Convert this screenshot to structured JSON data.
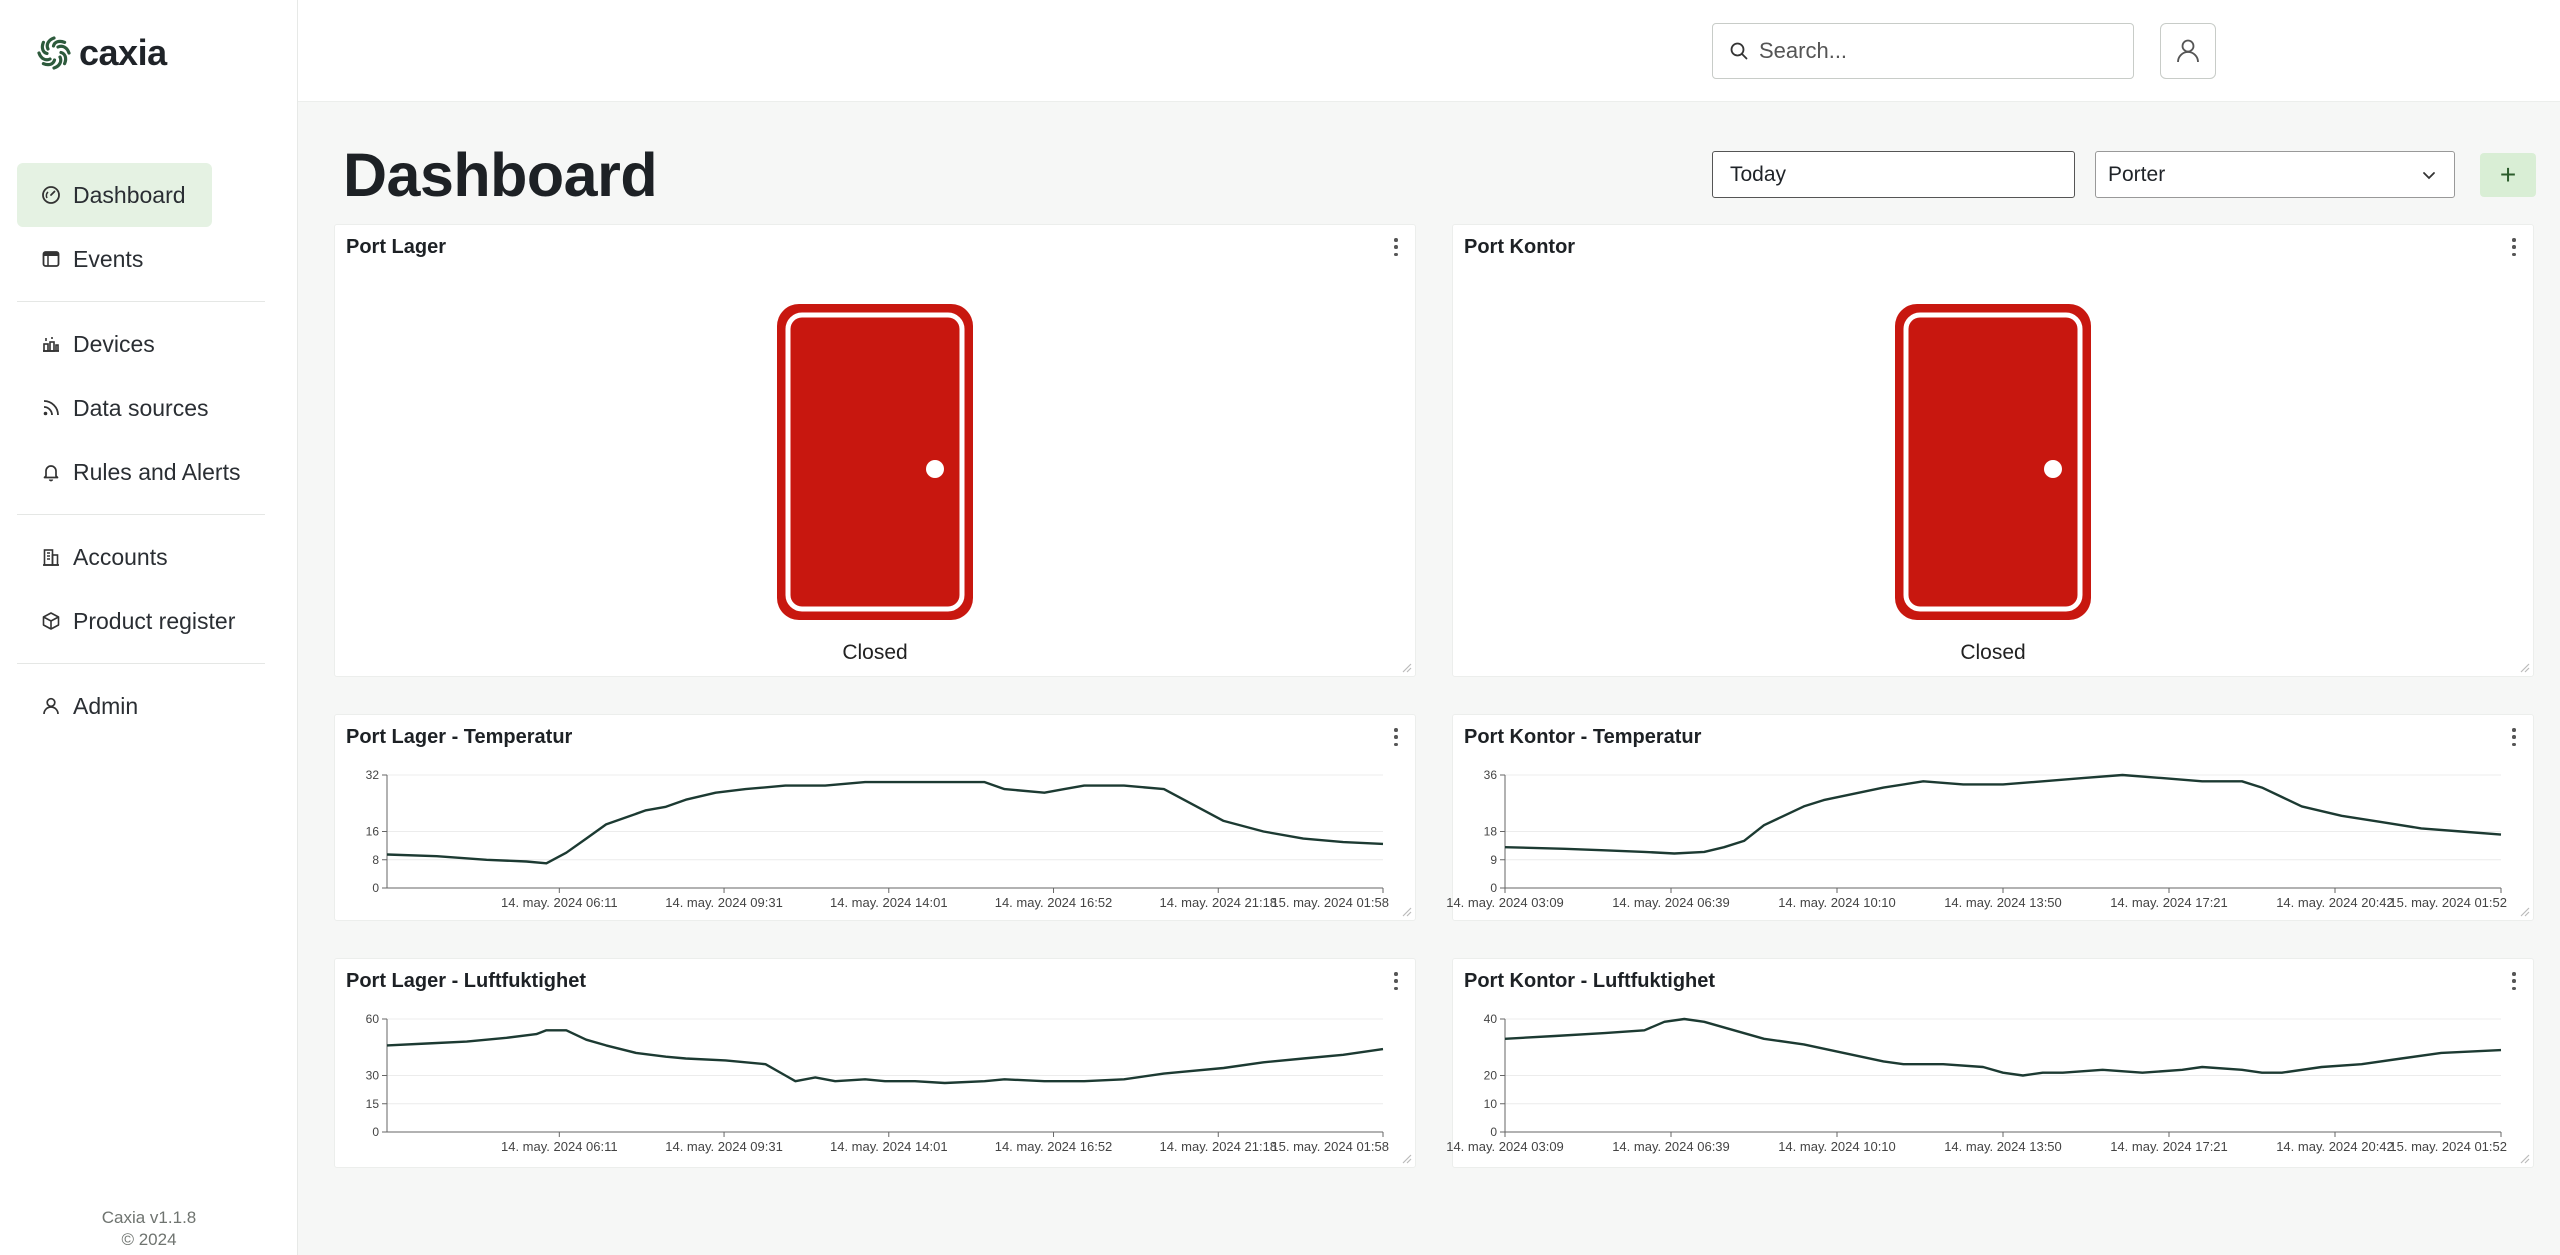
{
  "app": {
    "name": "caxia",
    "version": "Caxia v1.1.8",
    "copyright": "© 2024"
  },
  "sidebar": {
    "items": [
      {
        "label": "Dashboard",
        "icon": "gauge-icon",
        "active": true
      },
      {
        "label": "Events",
        "icon": "calendar-table-icon"
      },
      {
        "label": "Devices",
        "icon": "devices-icon"
      },
      {
        "label": "Data sources",
        "icon": "rss-icon"
      },
      {
        "label": "Rules and Alerts",
        "icon": "bell-icon"
      },
      {
        "label": "Accounts",
        "icon": "building-icon"
      },
      {
        "label": "Product register",
        "icon": "box-icon"
      },
      {
        "label": "Admin",
        "icon": "user-icon"
      }
    ]
  },
  "topbar": {
    "search_placeholder": "Search..."
  },
  "header": {
    "title": "Dashboard",
    "date_range": "Today",
    "group": "Porter",
    "add_label": "+"
  },
  "colors": {
    "accent_bg": "#e5f2e3",
    "door_red": "#c8170f",
    "line": "#1c3a32"
  },
  "widgets": {
    "door_lager": {
      "title": "Port Lager",
      "status": "Closed"
    },
    "door_kontor": {
      "title": "Port Kontor",
      "status": "Closed"
    },
    "temp_lager": {
      "title": "Port Lager - Temperatur"
    },
    "temp_kontor": {
      "title": "Port Kontor - Temperatur"
    },
    "hum_lager": {
      "title": "Port Lager - Luftfuktighet"
    },
    "hum_kontor": {
      "title": "Port Kontor - Luftfuktighet"
    }
  },
  "chart_data": [
    {
      "id": "temp_lager",
      "type": "line",
      "title": "Port Lager - Temperatur",
      "ylim": [
        0,
        32
      ],
      "yticks": [
        0,
        8,
        16,
        32
      ],
      "xticks": [
        "14. may. 2024 06:11",
        "14. may. 2024 09:31",
        "14. may. 2024 14:01",
        "14. may. 2024 16:52",
        "14. may. 2024 21:18",
        "15. may. 2024 01:58"
      ],
      "x": [
        0,
        0.05,
        0.1,
        0.14,
        0.16,
        0.18,
        0.2,
        0.22,
        0.24,
        0.26,
        0.28,
        0.3,
        0.33,
        0.36,
        0.4,
        0.44,
        0.48,
        0.52,
        0.56,
        0.6,
        0.62,
        0.66,
        0.68,
        0.7,
        0.74,
        0.78,
        0.8,
        0.84,
        0.88,
        0.92,
        0.96,
        1.0
      ],
      "y": [
        9.5,
        9,
        8,
        7.5,
        7,
        10,
        14,
        18,
        20,
        22,
        23,
        25,
        27,
        28,
        29,
        29,
        30,
        30,
        30,
        30,
        28,
        27,
        28,
        29,
        29,
        28,
        25,
        19,
        16,
        14,
        13,
        12.5
      ]
    },
    {
      "id": "temp_kontor",
      "type": "line",
      "title": "Port Kontor - Temperatur",
      "ylim": [
        0,
        36
      ],
      "yticks": [
        0,
        9,
        18,
        36
      ],
      "xticks": [
        "14. may. 2024 03:09",
        "14. may. 2024 06:39",
        "14. may. 2024 10:10",
        "14. may. 2024 13:50",
        "14. may. 2024 17:21",
        "14. may. 2024 20:42",
        "15. may. 2024 01:52"
      ],
      "x": [
        0,
        0.06,
        0.1,
        0.14,
        0.17,
        0.2,
        0.22,
        0.24,
        0.26,
        0.28,
        0.3,
        0.32,
        0.35,
        0.38,
        0.42,
        0.46,
        0.5,
        0.54,
        0.58,
        0.62,
        0.66,
        0.7,
        0.74,
        0.76,
        0.78,
        0.8,
        0.84,
        0.88,
        0.92,
        0.96,
        1.0
      ],
      "y": [
        13,
        12.5,
        12,
        11.5,
        11,
        11.5,
        13,
        15,
        20,
        23,
        26,
        28,
        30,
        32,
        34,
        33,
        33,
        34,
        35,
        36,
        35,
        34,
        34,
        32,
        29,
        26,
        23,
        21,
        19,
        18,
        17
      ]
    },
    {
      "id": "hum_lager",
      "type": "line",
      "title": "Port Lager - Luftfuktighet",
      "ylim": [
        0,
        60
      ],
      "yticks": [
        0,
        15,
        30,
        60
      ],
      "xticks": [
        "14. may. 2024 06:11",
        "14. may. 2024 09:31",
        "14. may. 2024 14:01",
        "14. may. 2024 16:52",
        "14. may. 2024 21:18",
        "15. may. 2024 01:58"
      ],
      "x": [
        0,
        0.04,
        0.08,
        0.12,
        0.15,
        0.16,
        0.18,
        0.2,
        0.22,
        0.25,
        0.28,
        0.3,
        0.34,
        0.38,
        0.4,
        0.41,
        0.43,
        0.45,
        0.48,
        0.5,
        0.53,
        0.56,
        0.6,
        0.62,
        0.66,
        0.7,
        0.74,
        0.78,
        0.8,
        0.84,
        0.88,
        0.92,
        0.96,
        1.0
      ],
      "y": [
        46,
        47,
        48,
        50,
        52,
        54,
        54,
        49,
        46,
        42,
        40,
        39,
        38,
        36,
        30,
        27,
        29,
        27,
        28,
        27,
        27,
        26,
        27,
        28,
        27,
        27,
        28,
        31,
        32,
        34,
        37,
        39,
        41,
        44
      ]
    },
    {
      "id": "hum_kontor",
      "type": "line",
      "title": "Port Kontor - Luftfuktighet",
      "ylim": [
        0,
        40
      ],
      "yticks": [
        0,
        10,
        20,
        40
      ],
      "xticks": [
        "14. may. 2024 03:09",
        "14. may. 2024 06:39",
        "14. may. 2024 10:10",
        "14. may. 2024 13:50",
        "14. may. 2024 17:21",
        "14. may. 2024 20:42",
        "15. may. 2024 01:52"
      ],
      "x": [
        0,
        0.05,
        0.1,
        0.14,
        0.16,
        0.18,
        0.2,
        0.23,
        0.26,
        0.3,
        0.34,
        0.38,
        0.4,
        0.44,
        0.48,
        0.5,
        0.52,
        0.54,
        0.56,
        0.6,
        0.64,
        0.68,
        0.7,
        0.74,
        0.76,
        0.78,
        0.82,
        0.86,
        0.9,
        0.94,
        1.0
      ],
      "y": [
        33,
        34,
        35,
        36,
        39,
        40,
        39,
        36,
        33,
        31,
        28,
        25,
        24,
        24,
        23,
        21,
        20,
        21,
        21,
        22,
        21,
        22,
        23,
        22,
        21,
        21,
        23,
        24,
        26,
        28,
        29
      ]
    }
  ]
}
